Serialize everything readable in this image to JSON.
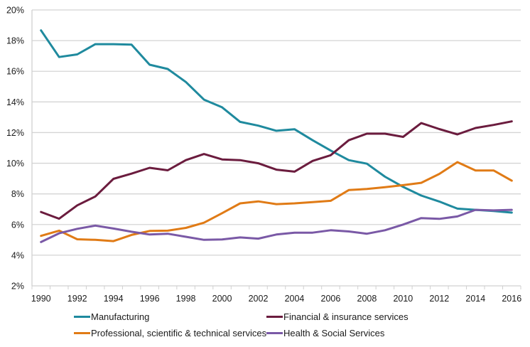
{
  "chart_data": {
    "type": "line",
    "title": "",
    "xlabel": "",
    "ylabel": "",
    "ylim": [
      2,
      20
    ],
    "y_ticks": [
      "2%",
      "4%",
      "6%",
      "8%",
      "10%",
      "12%",
      "14%",
      "16%",
      "18%",
      "20%"
    ],
    "y_tick_values": [
      2,
      4,
      6,
      8,
      10,
      12,
      14,
      16,
      18,
      20
    ],
    "x": [
      1990,
      1991,
      1992,
      1993,
      1994,
      1995,
      1996,
      1997,
      1998,
      1999,
      2000,
      2001,
      2002,
      2003,
      2004,
      2005,
      2006,
      2007,
      2008,
      2009,
      2010,
      2011,
      2012,
      2013,
      2014,
      2015,
      2016
    ],
    "x_tick_labels": [
      "1990",
      "1992",
      "1994",
      "1996",
      "1998",
      "2000",
      "2002",
      "2004",
      "2006",
      "2008",
      "2010",
      "2012",
      "2014",
      "2016"
    ],
    "grid": "horizontal",
    "legend_position": "bottom",
    "series": [
      {
        "name": "Manufacturing",
        "color": "#1f8a9e",
        "values": [
          18.67,
          16.93,
          17.1,
          17.77,
          17.77,
          17.74,
          16.43,
          16.15,
          15.3,
          14.15,
          13.65,
          12.7,
          12.45,
          12.12,
          12.22,
          11.5,
          10.83,
          10.2,
          9.97,
          9.12,
          8.46,
          7.89,
          7.5,
          7.04,
          6.96,
          6.88,
          6.78
        ]
      },
      {
        "name": "Financial & insurance services",
        "color": "#6b1c3e",
        "values": [
          6.82,
          6.38,
          7.25,
          7.83,
          8.98,
          9.32,
          9.7,
          9.54,
          10.2,
          10.6,
          10.25,
          10.2,
          10.0,
          9.58,
          9.45,
          10.15,
          10.52,
          11.5,
          11.93,
          11.93,
          11.72,
          12.62,
          12.23,
          11.88,
          12.3,
          12.5,
          12.73
        ]
      },
      {
        "name": "Professional, scientific & technical services",
        "color": "#e07b16",
        "values": [
          5.26,
          5.6,
          5.04,
          5.0,
          4.92,
          5.32,
          5.58,
          5.6,
          5.78,
          6.12,
          6.74,
          7.38,
          7.51,
          7.33,
          7.38,
          7.46,
          7.55,
          8.25,
          8.32,
          8.44,
          8.57,
          8.72,
          9.3,
          10.07,
          9.53,
          9.53,
          8.86
        ]
      },
      {
        "name": "Health & Social Services",
        "color": "#7a59a6",
        "values": [
          4.86,
          5.43,
          5.72,
          5.93,
          5.74,
          5.53,
          5.35,
          5.4,
          5.2,
          5.0,
          5.03,
          5.16,
          5.08,
          5.35,
          5.47,
          5.47,
          5.63,
          5.55,
          5.4,
          5.63,
          6.0,
          6.42,
          6.37,
          6.53,
          6.96,
          6.92,
          6.96
        ]
      }
    ]
  }
}
